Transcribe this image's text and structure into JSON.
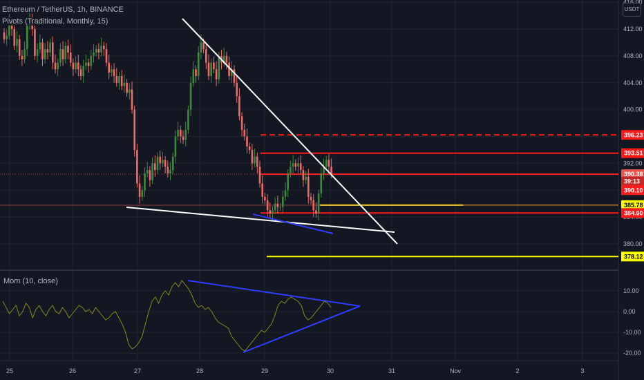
{
  "header": {
    "symbol_line": "Ethereum / TetherUS, 1h, BINANCE",
    "pivots_line": "Pivots (Traditional, Monthly, 15)",
    "momentum_line": "Mom (10, close)"
  },
  "currency_badge": "USDT",
  "colors": {
    "background": "#131722",
    "up": "#26a69a",
    "down": "#ef5350",
    "bull_candle": "#3f8a3f",
    "bear_candle": "#f06a6a",
    "pivot_red": "#ff1a1a",
    "pivot_yellow": "#ffff00",
    "trendline_white": "#ffffff",
    "trendline_blue": "#2f3bff",
    "momentum_line": "#8b8b1a",
    "grid": "#1f2430"
  },
  "chart_data": [
    {
      "type": "candlestick",
      "title": "Ethereum / TetherUS, 1h, BINANCE",
      "x_ticks": [
        "25",
        "26",
        "27",
        "28",
        "29",
        "30",
        "31",
        "Nov",
        "2",
        "3"
      ],
      "y_ticks": [
        "380.00",
        "384.00",
        "388.00",
        "392.00",
        "396.00",
        "400.00",
        "404.00",
        "408.00",
        "412.00",
        "416.00"
      ],
      "y_tick_values": [
        380,
        384,
        388,
        392,
        396,
        400,
        404,
        408,
        412,
        416
      ],
      "ylim": [
        377.5,
        416.5
      ],
      "price_tags": [
        {
          "label": "396.23",
          "value": 396.23,
          "style": "red"
        },
        {
          "label": "393.51",
          "value": 393.51,
          "style": "red"
        },
        {
          "label": "390.38",
          "value": 390.38,
          "style": "current"
        },
        {
          "label": "39:13",
          "value": 389.3,
          "style": "countdown"
        },
        {
          "label": "390.10",
          "value": 388.0,
          "style": "red"
        },
        {
          "label": "385.78",
          "value": 385.78,
          "style": "yellow"
        },
        {
          "label": "384.60",
          "value": 384.6,
          "style": "red"
        },
        {
          "label": "378.12",
          "value": 378.12,
          "style": "yellow"
        }
      ],
      "close_series": [
        410.5,
        411,
        413,
        412,
        409.5,
        410.5,
        408,
        407.5,
        409,
        412.5,
        413.5,
        412,
        408,
        409,
        410,
        407.5,
        409,
        408.5,
        410,
        407,
        406,
        407,
        409,
        407.5,
        409.5,
        408.5,
        407,
        406,
        407,
        406,
        405,
        406.5,
        407,
        406.5,
        408,
        408.5,
        409,
        408.5,
        409.5,
        409,
        407,
        405.5,
        406,
        405,
        404,
        405,
        403.5,
        404,
        402.5,
        403,
        400,
        394,
        389,
        387,
        388,
        390.5,
        391,
        389.5,
        392,
        391,
        393,
        392,
        392.5,
        391.5,
        390.5,
        391,
        393,
        396,
        397,
        396,
        395.5,
        397,
        400,
        404,
        406,
        405,
        408.5,
        410,
        409,
        407,
        405,
        407,
        406,
        404.5,
        408,
        407,
        408,
        407,
        405,
        406,
        404,
        402,
        399,
        397,
        396,
        394.5,
        394,
        392,
        393,
        391.5,
        389,
        387,
        386.5,
        385,
        384.5,
        385,
        386,
        385.5,
        385.5,
        387,
        388,
        390.5,
        391.5,
        392,
        391.5,
        392,
        391,
        389.5,
        390,
        387,
        386.5,
        385,
        384.5,
        387.5,
        390.5,
        391.5,
        392.5,
        391.5,
        390.4
      ],
      "pivot_levels": [
        {
          "value": 396.23,
          "color": "red",
          "dashed": true
        },
        {
          "value": 393.51,
          "color": "red",
          "dashed": false
        },
        {
          "value": 390.38,
          "color": "red",
          "dashed": false
        },
        {
          "value": 384.6,
          "color": "red",
          "dashed": false
        },
        {
          "value": 385.78,
          "color": "yellow",
          "dashed": false
        },
        {
          "value": 378.12,
          "color": "yellow",
          "dashed": false
        }
      ]
    },
    {
      "type": "line",
      "title": "Mom (10, close)",
      "y_ticks": [
        "10.00",
        "0.00",
        "-10.00",
        "-20.00"
      ],
      "y_tick_values": [
        10,
        0,
        -10,
        -20
      ],
      "ylim": [
        -24,
        16
      ],
      "values": [
        5,
        2,
        -1,
        1,
        3,
        -2,
        0,
        4,
        2,
        -3,
        1,
        3,
        0,
        -2,
        1,
        3,
        0,
        -1,
        2,
        0,
        -3,
        -1,
        1,
        3,
        2,
        0,
        1,
        -1,
        2,
        0,
        -2,
        -4,
        -3,
        -1,
        0,
        -3,
        -6,
        -10,
        -16,
        -18,
        -17,
        -15,
        -12,
        -6,
        0,
        5,
        7,
        4,
        8,
        10,
        8,
        12,
        14,
        12,
        15,
        13,
        11,
        8,
        4,
        2,
        3,
        1,
        2,
        0,
        -3,
        -5,
        -6,
        -7,
        -8,
        -12,
        -14,
        -16,
        -18,
        -19,
        -17,
        -15,
        -13,
        -11,
        -9,
        -10,
        -8,
        -6,
        -2,
        3,
        5,
        4,
        6,
        7,
        6,
        5,
        3,
        -2,
        -4,
        -3,
        -1,
        1,
        3,
        5,
        4,
        2
      ]
    }
  ]
}
